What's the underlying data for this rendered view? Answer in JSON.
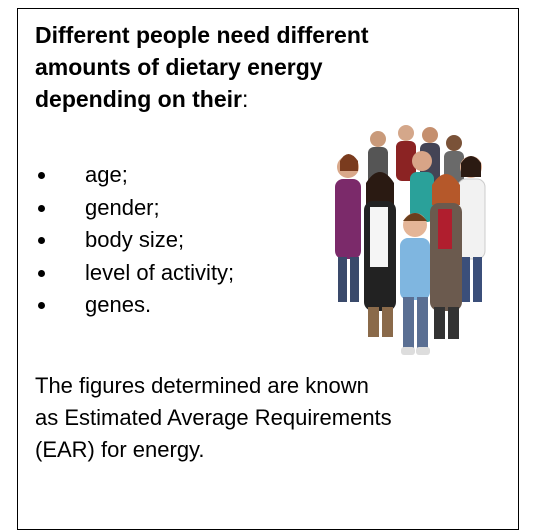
{
  "heading": {
    "lines": [
      "Different people need different",
      "amounts of dietary energy",
      "depending on their"
    ],
    "suffix": ":"
  },
  "bullets": [
    "age;",
    "gender;",
    "body size;",
    "level of activity;",
    "genes."
  ],
  "paragraph": {
    "lines": [
      "The figures determined are known",
      "as Estimated Average Requirements",
      "(EAR) for energy."
    ]
  }
}
